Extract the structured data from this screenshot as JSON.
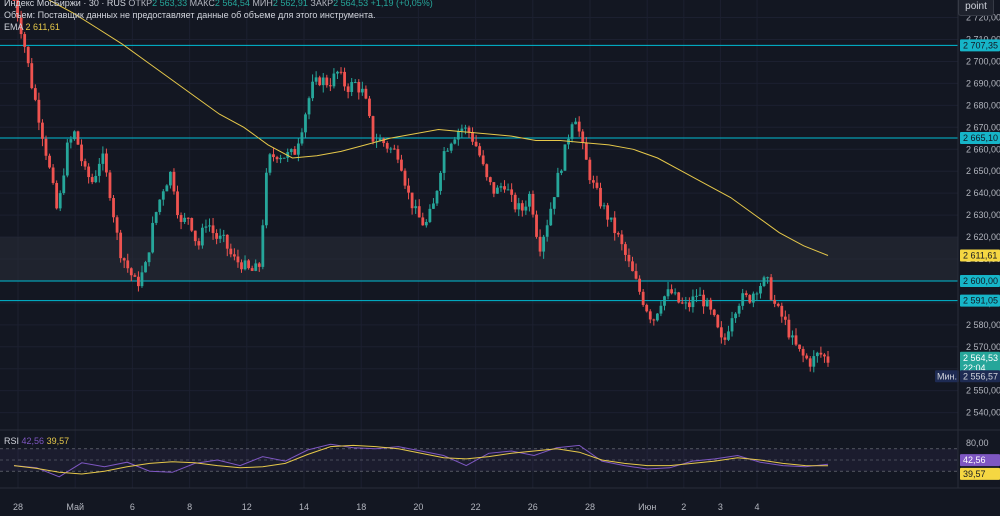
{
  "legend": {
    "name": "Индекс МосБиржи · 30 · RUS",
    "open_label": "ОТКР",
    "open": "2 563,33",
    "high_label": "МАКС",
    "high": "2 564,54",
    "low_label": "МИН",
    "low": "2 562,91",
    "close_label": "ЗАКР",
    "close": "2 564,53",
    "change": "+1,19 (+0,05%)",
    "volume_notice": "Объем: Поставщик данных не предоставляет данные об объеме для этого инструмента.",
    "ema_label": "EMA",
    "ema_value": "2 611,61",
    "rsi_label": "RSI",
    "rsi_value": "42,56",
    "rsi_ma_value": "39,57"
  },
  "toolbar": {
    "point_label": "point"
  },
  "colors": {
    "up": "#26a69a",
    "down": "#ef5350",
    "ema": "#e6c84a",
    "rsi": "#7e57c2",
    "rsi_ma": "#e6c84a",
    "level": "#00bcd4",
    "zone": "#2a2e39"
  },
  "chart_data": {
    "type": "candlestick",
    "x_ticks": [
      "28",
      "Май",
      "6",
      "8",
      "12",
      "14",
      "18",
      "20",
      "22",
      "26",
      "28",
      "Июн",
      "2",
      "3",
      "4"
    ],
    "y_ticks": [
      "2 720,00",
      "2 710,00",
      "2 700,00",
      "2 690,00",
      "2 680,00",
      "2 670,00",
      "2 660,00",
      "2 650,00",
      "2 640,00",
      "2 630,00",
      "2 620,00",
      "2 610,00",
      "2 600,00",
      "2 590,00",
      "2 580,00",
      "2 570,00",
      "2 560,00",
      "2 550,00",
      "2 540,00"
    ],
    "ylim": [
      2533,
      2728
    ],
    "levels": [
      {
        "value": 2707.35,
        "label": "2 707,35"
      },
      {
        "value": 2665.1,
        "label": "2 665,10"
      },
      {
        "value": 2600.0,
        "label": "2 600,00"
      },
      {
        "value": 2591.05,
        "label": "2 591,05"
      }
    ],
    "zone": {
      "from": 2600,
      "to": 2620
    },
    "last_price": {
      "value": 2564.53,
      "label": "2 564,53",
      "timer": "22:04"
    },
    "ema_last": {
      "value": 2611.61,
      "label": "2 611,61"
    },
    "low_marker": {
      "value": 2556.57,
      "label": "2 556,57",
      "prefix": "Мин."
    },
    "price_path": [
      2728,
      2712,
      2690,
      2672,
      2652,
      2630,
      2660,
      2668,
      2650,
      2645,
      2658,
      2640,
      2615,
      2606,
      2598,
      2606,
      2628,
      2642,
      2650,
      2625,
      2630,
      2615,
      2628,
      2620,
      2618,
      2610,
      2608,
      2604,
      2606,
      2655,
      2658,
      2657,
      2658,
      2672,
      2688,
      2692,
      2690,
      2695,
      2688,
      2690,
      2685,
      2665,
      2664,
      2660,
      2658,
      2640,
      2630,
      2625,
      2635,
      2658,
      2665,
      2670,
      2668,
      2660,
      2646,
      2640,
      2645,
      2635,
      2632,
      2640,
      2615,
      2628,
      2645,
      2660,
      2678,
      2660,
      2645,
      2636,
      2628,
      2620,
      2610,
      2600,
      2590,
      2582,
      2592,
      2595,
      2590,
      2588,
      2594,
      2590,
      2582,
      2570,
      2585,
      2592,
      2592,
      2598,
      2600,
      2588,
      2582,
      2572,
      2566,
      2563,
      2567,
      2564
    ],
    "ema_path": [
      2728,
      2722,
      2715,
      2708,
      2700,
      2692,
      2684,
      2676,
      2670,
      2662,
      2656,
      2657,
      2659,
      2662,
      2665,
      2667,
      2669,
      2668,
      2667,
      2666,
      2664,
      2664,
      2663,
      2662,
      2660,
      2656,
      2650,
      2644,
      2638,
      2630,
      2622,
      2616,
      2611.61
    ],
    "ema_start_index": 4,
    "rsi": {
      "ylim": [
        0,
        100
      ],
      "ticks": [
        {
          "value": 80,
          "label": "80,00"
        }
      ],
      "last": {
        "value": 42.56,
        "label": "42,56"
      },
      "ma_last": {
        "value": 39.57,
        "label": "39,57"
      },
      "ma_path": [
        40,
        35,
        28,
        25,
        30,
        38,
        44,
        47,
        45,
        40,
        36,
        38,
        44,
        60,
        74,
        76,
        74,
        70,
        62,
        54,
        52,
        56,
        62,
        66,
        70,
        64,
        50,
        44,
        40,
        40,
        44,
        48,
        54,
        50,
        44,
        40,
        39.57
      ],
      "rsi_path": [
        40,
        36,
        20,
        45,
        38,
        46,
        30,
        28,
        44,
        50,
        40,
        56,
        48,
        68,
        78,
        72,
        70,
        74,
        66,
        58,
        40,
        62,
        66,
        58,
        72,
        76,
        48,
        40,
        34,
        36,
        48,
        52,
        58,
        46,
        40,
        38,
        42.56
      ]
    }
  }
}
